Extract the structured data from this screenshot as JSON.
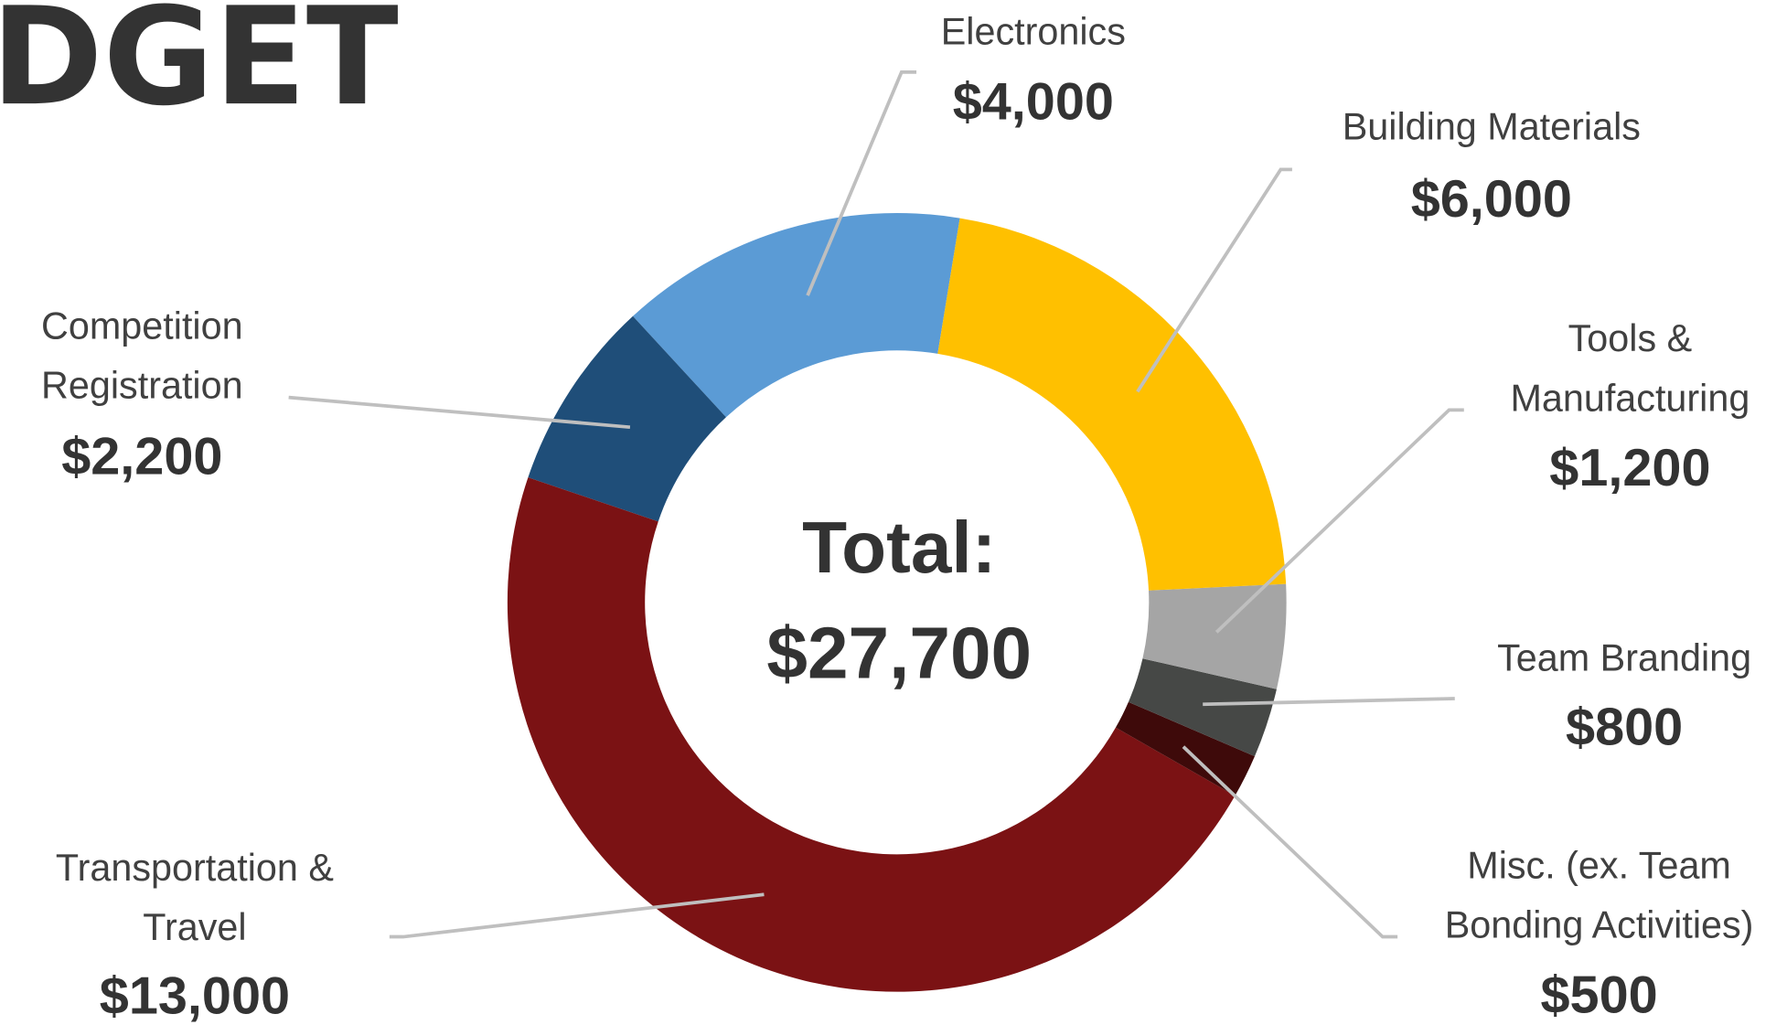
{
  "chart_data": {
    "type": "donut",
    "title": "DGET",
    "categories": [
      [
        "Building Materials"
      ],
      [
        "Tools &",
        "Manufacturing"
      ],
      [
        "Team Branding"
      ],
      [
        "Misc. (ex. Team",
        "Bonding Activities)"
      ],
      [
        "Transportation &",
        "Travel"
      ],
      [
        "Competition",
        "Registration"
      ],
      [
        "Electronics"
      ]
    ],
    "values": [
      6000,
      1200,
      800,
      500,
      13000,
      2200,
      4000
    ],
    "value_labels": [
      "$6,000",
      "$1,200",
      "$800",
      "$500",
      "$13,000",
      "$2,200",
      "$4,000"
    ],
    "colors": [
      "#ffc000",
      "#a5a5a5",
      "#464846",
      "#3e0a0a",
      "#7b1214",
      "#1f4e79",
      "#5b9bd5"
    ],
    "annotation": [
      "Total:",
      "$27,700"
    ]
  }
}
